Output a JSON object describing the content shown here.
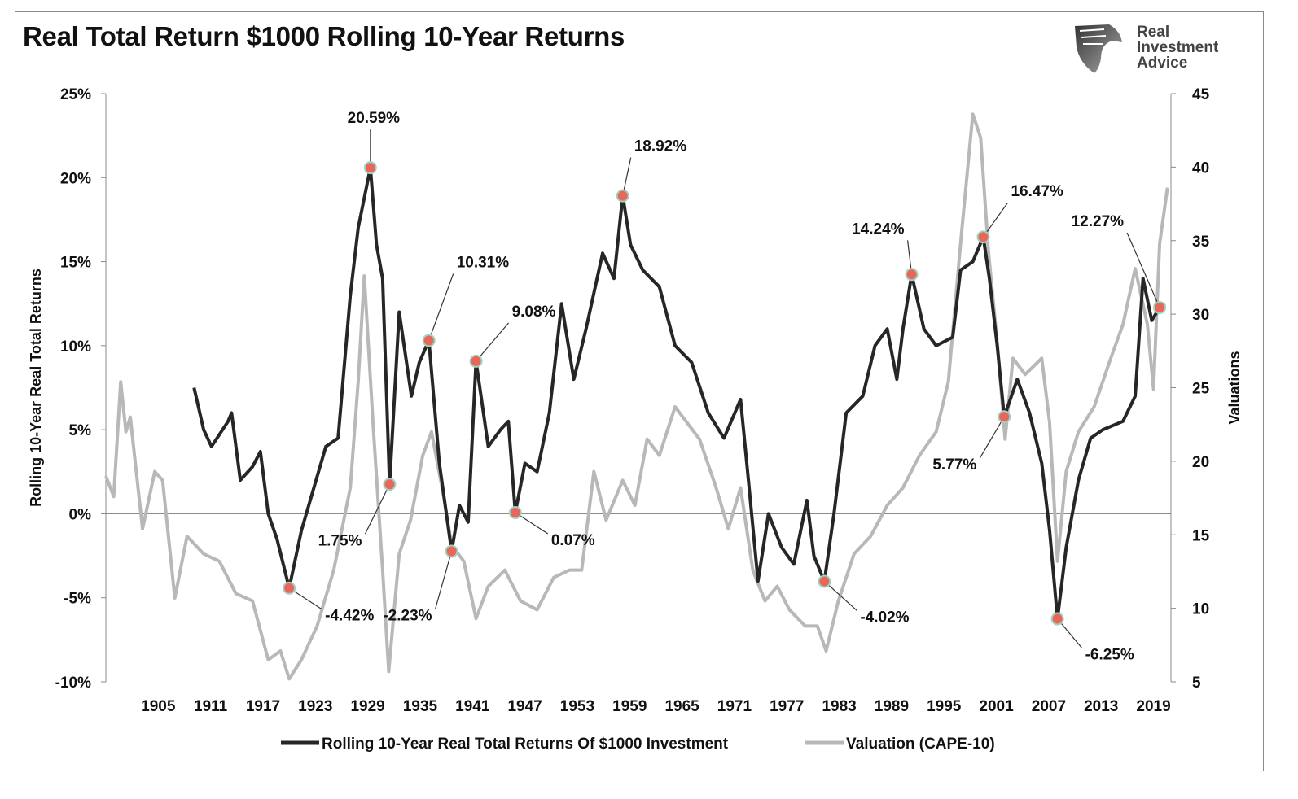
{
  "logo_text": "Real Investment Advice",
  "chart_data": {
    "type": "line",
    "title": "Real Total Return $1000 Rolling 10-Year Returns",
    "ylabel": "Rolling 10-Year Real Total Returns",
    "y2label": "Valuations",
    "xlim": [
      1899,
      2021
    ],
    "ylim": [
      -10,
      25
    ],
    "y2lim": [
      5,
      45
    ],
    "xticks": [
      1905,
      1911,
      1917,
      1923,
      1929,
      1935,
      1941,
      1947,
      1953,
      1959,
      1965,
      1971,
      1977,
      1983,
      1989,
      1995,
      2001,
      2007,
      2013,
      2019
    ],
    "yticks": [
      25,
      20,
      15,
      10,
      5,
      0,
      -5,
      -10
    ],
    "ytick_labels": [
      "25%",
      "20%",
      "15%",
      "10%",
      "5%",
      "0%",
      "-5%",
      "-10%"
    ],
    "y2ticks": [
      45,
      40,
      35,
      30,
      25,
      20,
      15,
      10,
      5
    ],
    "legend_placement": "bottom",
    "colors": {
      "returns": "#262626",
      "cape": "#b8b8b8",
      "marker": "#e8675a",
      "marker_ring": "#9fd3c0",
      "zero_line": "#8c8c8c"
    },
    "series": [
      {
        "name": "Rolling 10-Year Real Total Returns Of $1000 Investment",
        "axis": "left",
        "x": [
          1909.1,
          1910.2,
          1911.1,
          1913,
          1913.4,
          1914.4,
          1915.8,
          1916.7,
          1917.6,
          1918.6,
          1920,
          1921.4,
          1922.8,
          1924.2,
          1925.6,
          1927,
          1927.9,
          1929.3,
          1930,
          1930.7,
          1931.5,
          1932.6,
          1934,
          1934.9,
          1936,
          1937.2,
          1938.6,
          1939.5,
          1940.5,
          1941.4,
          1942.8,
          1944.2,
          1945.1,
          1945.9,
          1947,
          1948.4,
          1949.8,
          1951.2,
          1952.6,
          1954,
          1955.9,
          1957.2,
          1958.2,
          1959.1,
          1960.5,
          1962.4,
          1964.2,
          1966.1,
          1968,
          1969.8,
          1971.7,
          1972.6,
          1973.7,
          1974.9,
          1976.4,
          1977.8,
          1979.3,
          1980.1,
          1981.3,
          1982.4,
          1983.8,
          1985.7,
          1987.1,
          1988.5,
          1989.6,
          1990.3,
          1991.3,
          1992.7,
          1994.1,
          1996,
          1996.9,
          1998.3,
          1999.5,
          2000.2,
          2001.1,
          2001.9,
          2003.4,
          2004.8,
          2006.2,
          2007.1,
          2008,
          2009,
          2010.4,
          2011.8,
          2013.2,
          2015.5,
          2016.9,
          2017.8,
          2018.8,
          2019.7,
          2020.3
        ],
        "y": [
          7.5,
          5,
          4,
          5.5,
          6,
          2,
          2.8,
          3.7,
          0,
          -1.5,
          -4.42,
          -1,
          1.5,
          4,
          4.5,
          13,
          17,
          20.59,
          16,
          14,
          1.75,
          12,
          7,
          9,
          10.31,
          3,
          -2.23,
          0.5,
          -0.5,
          9.08,
          4,
          5,
          5.5,
          0.07,
          3,
          2.5,
          6,
          12.5,
          8,
          11,
          15.5,
          14,
          18.92,
          16,
          14.5,
          13.5,
          10,
          9,
          6,
          4.5,
          6.8,
          2,
          -4,
          0,
          -2,
          -3,
          0.8,
          -2.5,
          -4.02,
          0,
          6,
          7,
          10,
          11,
          8,
          11,
          14.24,
          11,
          10,
          10.5,
          14.5,
          15,
          16.47,
          14,
          10,
          5.77,
          8,
          6,
          3,
          -1,
          -6.25,
          -2,
          2,
          4.5,
          5,
          5.5,
          7,
          14,
          11.5,
          12.27,
          12.5
        ]
      },
      {
        "name": "Valuation (CAPE-10)",
        "axis": "right",
        "x": [
          1899.0,
          1899.9,
          1900.7,
          1901.3,
          1901.8,
          1903.2,
          1904.6,
          1905.5,
          1906.9,
          1908.3,
          1910.2,
          1912.0,
          1913.9,
          1915.8,
          1917.6,
          1919.0,
          1920.0,
          1921.4,
          1923.2,
          1925.1,
          1927.0,
          1927.9,
          1928.6,
          1929.6,
          1930.7,
          1931.4,
          1932.6,
          1933.9,
          1935.3,
          1936.3,
          1937.7,
          1938.6,
          1940.0,
          1941.4,
          1942.8,
          1944.7,
          1946.5,
          1948.4,
          1950.3,
          1952.1,
          1953.5,
          1954.9,
          1956.3,
          1958.2,
          1959.6,
          1961.0,
          1962.4,
          1964.2,
          1965.6,
          1967.0,
          1968.9,
          1970.3,
          1971.7,
          1973.1,
          1974.5,
          1975.9,
          1977.3,
          1979.1,
          1980.5,
          1981.5,
          1982.9,
          1984.7,
          1986.6,
          1988.5,
          1990.3,
          1992.2,
          1994.1,
          1995.5,
          1996.9,
          1998.3,
          1999.2,
          2000.1,
          2001.1,
          2002.0,
          2002.9,
          2004.3,
          2006.2,
          2007.1,
          2008.0,
          2009.0,
          2010.4,
          2012.2,
          2014.1,
          2015.5,
          2016.9,
          2018.3,
          2019.0,
          2019.7,
          2020.6
        ],
        "y": [
          19,
          17.6,
          25.4,
          22,
          23,
          15.4,
          19.3,
          18.7,
          10.7,
          14.9,
          13.7,
          13.2,
          11,
          10.5,
          6.5,
          7.1,
          5.2,
          6.5,
          8.8,
          12.6,
          18.2,
          25.4,
          32.6,
          22.6,
          12.6,
          5.7,
          13.7,
          16,
          20.4,
          22,
          17.6,
          14.3,
          13.2,
          9.3,
          11.5,
          12.6,
          10.5,
          9.9,
          12.1,
          12.6,
          12.6,
          19.3,
          16,
          18.7,
          17,
          21.5,
          20.4,
          23.7,
          22.6,
          21.5,
          18.2,
          15.4,
          18.2,
          12.6,
          10.5,
          11.5,
          9.9,
          8.8,
          8.8,
          7.1,
          10.5,
          13.7,
          14.9,
          17,
          18.2,
          20.4,
          22,
          25.4,
          34.8,
          43.6,
          42,
          34.2,
          28.1,
          21.5,
          27,
          25.9,
          27,
          22.6,
          13.2,
          19.3,
          22,
          23.7,
          27,
          29.3,
          33.1,
          29.3,
          24.9,
          34.8,
          38.6
        ]
      }
    ],
    "annotations": [
      {
        "x": 1920,
        "y": -4.42,
        "text": "-4.42%"
      },
      {
        "x": 1929.3,
        "y": 20.59,
        "text": "20.59%"
      },
      {
        "x": 1931.5,
        "y": 1.75,
        "text": "1.75%"
      },
      {
        "x": 1936,
        "y": 10.31,
        "text": "10.31%"
      },
      {
        "x": 1938.6,
        "y": -2.23,
        "text": "-2.23%"
      },
      {
        "x": 1941.4,
        "y": 9.08,
        "text": "9.08%"
      },
      {
        "x": 1945.9,
        "y": 0.07,
        "text": "0.07%"
      },
      {
        "x": 1958.2,
        "y": 18.92,
        "text": "18.92%"
      },
      {
        "x": 1981.3,
        "y": -4.02,
        "text": "-4.02%"
      },
      {
        "x": 1991.3,
        "y": 14.24,
        "text": "14.24%"
      },
      {
        "x": 1999.5,
        "y": 16.47,
        "text": "16.47%"
      },
      {
        "x": 2001.9,
        "y": 5.77,
        "text": "5.77%"
      },
      {
        "x": 2008,
        "y": -6.25,
        "text": "-6.25%"
      },
      {
        "x": 2019.7,
        "y": 12.27,
        "text": "12.27%"
      }
    ]
  }
}
